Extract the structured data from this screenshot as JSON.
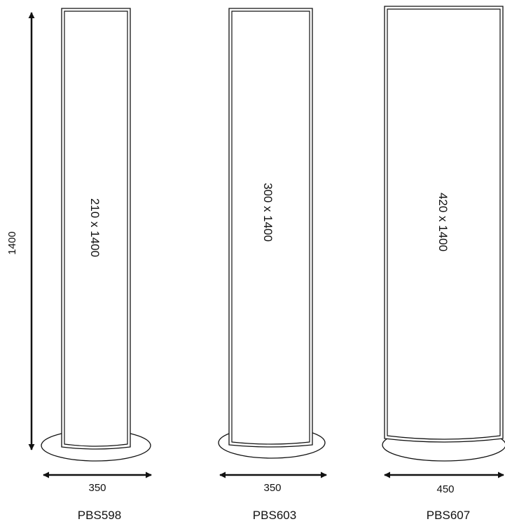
{
  "height_dimension": "1400",
  "stands": [
    {
      "model": "PBS598",
      "panel_size": "210 x 1400",
      "base_width": "350"
    },
    {
      "model": "PBS603",
      "panel_size": "300 x 1400",
      "base_width": "350"
    },
    {
      "model": "PBS607",
      "panel_size": "420 x 1400",
      "base_width": "450"
    }
  ]
}
